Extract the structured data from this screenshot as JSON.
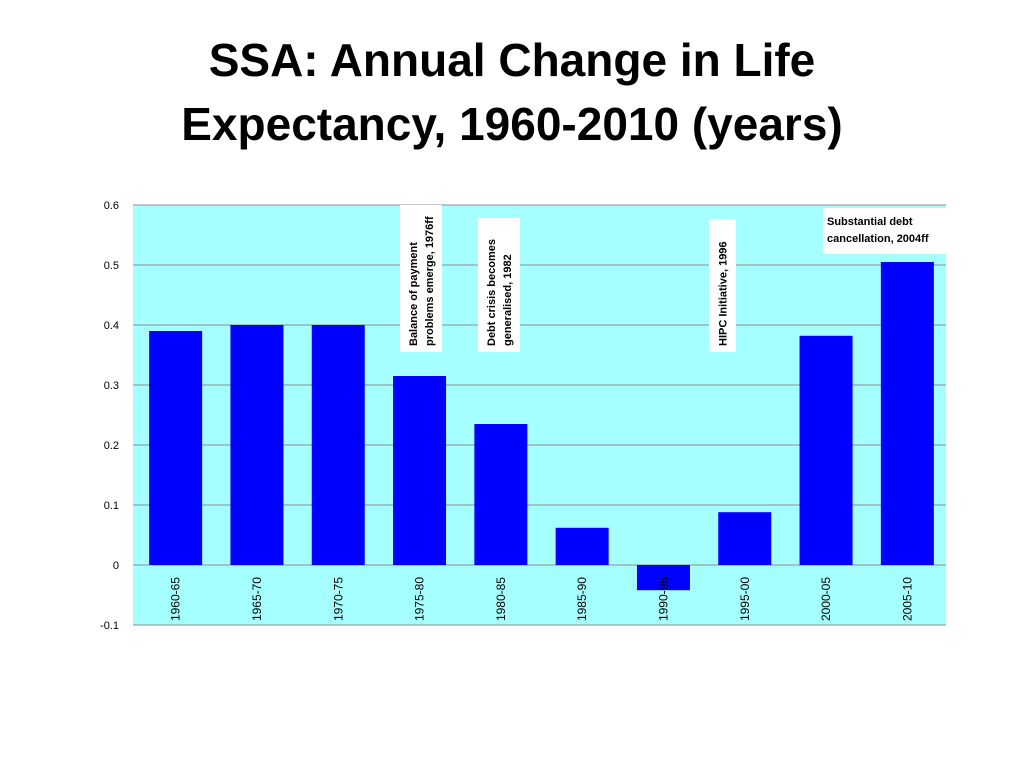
{
  "slide": {
    "title_line1": "SSA: Annual Change in Life",
    "title_line2": "Expectancy, 1960-2010 (years)"
  },
  "colors": {
    "plot_background": "#a6ffff",
    "bar": "#0000ff",
    "gridline": "#8c8c8c",
    "annotation_box": "#ffffff"
  },
  "chart_data": {
    "type": "bar",
    "title": "SSA: Annual Change in Life Expectancy, 1960-2010 (years)",
    "xlabel": "",
    "ylabel": "",
    "categories": [
      "1960-65",
      "1965-70",
      "1970-75",
      "1975-80",
      "1980-85",
      "1985-90",
      "1990-95",
      "1995-00",
      "2000-05",
      "2005-10"
    ],
    "values": [
      0.39,
      0.4,
      0.4,
      0.315,
      0.235,
      0.062,
      -0.042,
      0.088,
      0.382,
      0.505
    ],
    "ylim": [
      -0.1,
      0.6
    ],
    "yticks": [
      -0.1,
      0,
      0.1,
      0.2,
      0.3,
      0.4,
      0.5,
      0.6
    ],
    "ytick_labels": [
      "-0.1",
      "0",
      "0.1",
      "0.2",
      "0.3",
      "0.4",
      "0.5",
      "0.6"
    ],
    "grid": true,
    "legend": "none",
    "annotations": [
      {
        "lines": [
          "Balance of payment",
          "problems emerge, 1976ff"
        ],
        "between_categories": [
          "1975-80",
          "1980-85"
        ],
        "vertical": true
      },
      {
        "lines": [
          "Debt crisis becomes",
          "generalised, 1982"
        ],
        "between_categories": [
          "1980-85",
          "1980-85"
        ],
        "vertical": true
      },
      {
        "lines": [
          "HIPC Initiative, 1996"
        ],
        "between_categories": [
          "1995-00",
          "1995-00"
        ],
        "vertical": true
      },
      {
        "lines": [
          "Substantial debt",
          "cancellation, 2004ff"
        ],
        "between_categories": [
          "2000-05",
          "2005-10"
        ],
        "vertical": false
      }
    ]
  }
}
